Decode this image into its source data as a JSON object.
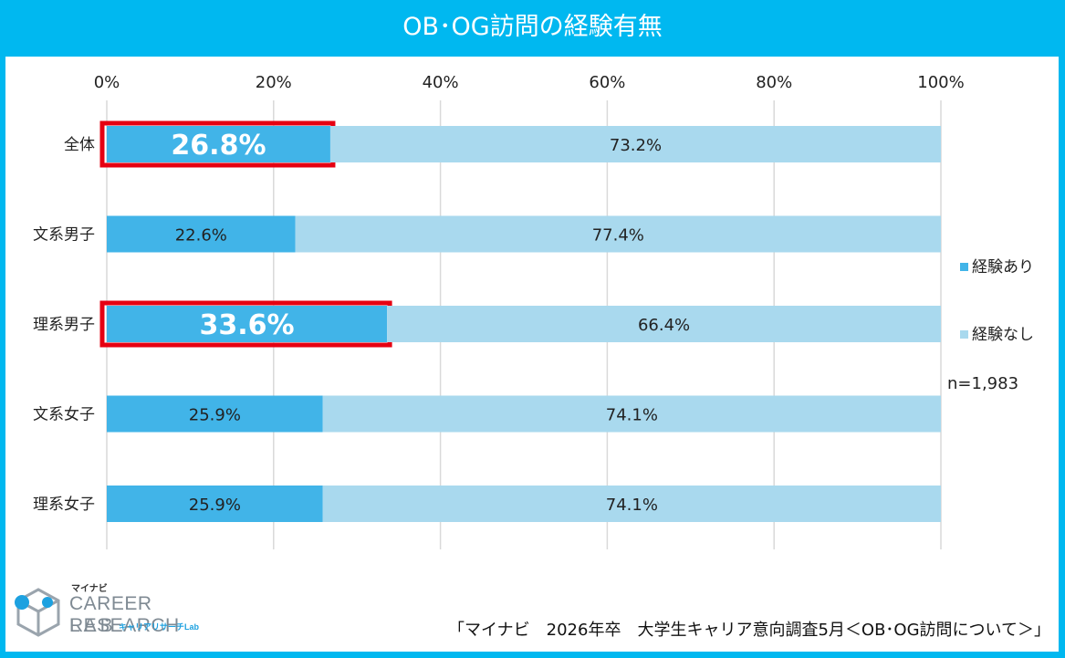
{
  "title": "OB･OG訪問の経験有無",
  "chart_data": {
    "type": "bar",
    "orientation": "horizontal",
    "stacked": "percent",
    "categories": [
      "全体",
      "文系男子",
      "理系男子",
      "文系女子",
      "理系女子"
    ],
    "series": [
      {
        "name": "経験あり",
        "values": [
          26.8,
          22.6,
          33.6,
          25.9,
          25.9
        ],
        "labels": [
          "26.8%",
          "22.6%",
          "33.6%",
          "25.9%",
          "25.9%"
        ],
        "color": "#41b4e8"
      },
      {
        "name": "経験なし",
        "values": [
          73.2,
          77.4,
          66.4,
          74.1,
          74.1
        ],
        "labels": [
          "73.2%",
          "77.4%",
          "66.4%",
          "74.1%",
          "74.1%"
        ],
        "color": "#a9d9ee"
      }
    ],
    "xlim": [
      0,
      100
    ],
    "x_ticks": [
      "0%",
      "20%",
      "40%",
      "60%",
      "80%",
      "100%"
    ],
    "x_axis_position": "top",
    "grid": true,
    "legend_position": "right",
    "highlighted_categories": [
      "全体",
      "理系男子"
    ],
    "highlight_color": "#e60012",
    "annotation": "n=1,983"
  },
  "logo": {
    "brand": "マイナビ",
    "line1": "CAREER RESEARCH",
    "line2": "LAB",
    "sub": "キャリアリサーチLab"
  },
  "source": "「マイナビ　2026年卒　大学生キャリア意向調査5月＜OB･OG訪問について＞」"
}
